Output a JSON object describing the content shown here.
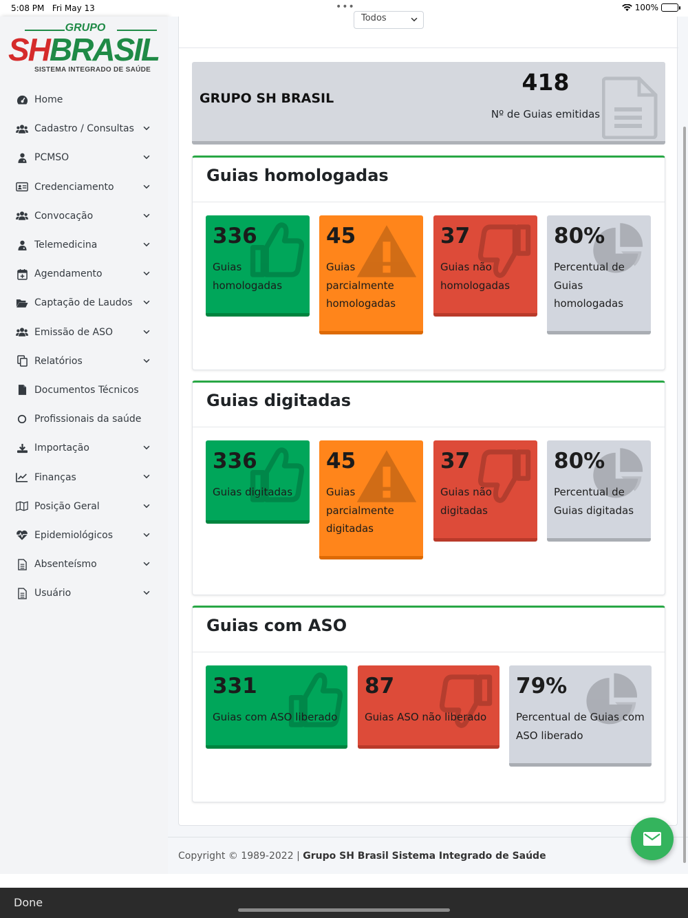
{
  "status_bar": {
    "time": "5:08 PM",
    "date": "Fri May 13",
    "battery": "100%"
  },
  "logo": {
    "top": "GRUPO",
    "brand_sh": "SH",
    "brand_name": "BRASIL",
    "subtitle": "SISTEMA INTEGRADO DE SAÚDE"
  },
  "sidebar": {
    "items": [
      {
        "label": "Home",
        "icon": "dashboard-icon",
        "expandable": false
      },
      {
        "label": "Cadastro / Consultas",
        "icon": "users-icon",
        "expandable": true
      },
      {
        "label": "PCMSO",
        "icon": "user-md-icon",
        "expandable": true
      },
      {
        "label": "Credenciamento",
        "icon": "id-card-icon",
        "expandable": true
      },
      {
        "label": "Convocação",
        "icon": "users-icon",
        "expandable": true
      },
      {
        "label": "Telemedicina",
        "icon": "user-md-icon",
        "expandable": true
      },
      {
        "label": "Agendamento",
        "icon": "calendar-plus-icon",
        "expandable": true
      },
      {
        "label": "Captação de Laudos",
        "icon": "folder-open-icon",
        "expandable": true
      },
      {
        "label": "Emissão de ASO",
        "icon": "users-icon",
        "expandable": true
      },
      {
        "label": "Relatórios",
        "icon": "copy-icon",
        "expandable": true
      },
      {
        "label": "Documentos Técnicos",
        "icon": "file-icon",
        "expandable": false
      },
      {
        "label": "Profissionais da saúde",
        "icon": "circle-icon",
        "expandable": false
      },
      {
        "label": "Importação",
        "icon": "download-icon",
        "expandable": true
      },
      {
        "label": "Finanças",
        "icon": "chart-line-icon",
        "expandable": true
      },
      {
        "label": "Posição Geral",
        "icon": "map-icon",
        "expandable": true
      },
      {
        "label": "Epidemiológicos",
        "icon": "heartbeat-icon",
        "expandable": true
      },
      {
        "label": "Absenteísmo",
        "icon": "file-alt-icon",
        "expandable": true
      },
      {
        "label": "Usuário",
        "icon": "file-alt-icon",
        "expandable": true
      }
    ]
  },
  "filter": {
    "selected": "Todos"
  },
  "summary": {
    "company": "GRUPO SH BRASIL",
    "count": "418",
    "caption": "Nº de Guias emitidas"
  },
  "sections": [
    {
      "title": "Guias homologadas",
      "boxes": [
        {
          "value": "336",
          "label": "Guias homologadas",
          "color": "green",
          "icon": "thumbs-up-icon"
        },
        {
          "value": "45",
          "label": "Guias parcialmente homologadas",
          "color": "orange",
          "icon": "warning-icon"
        },
        {
          "value": "37",
          "label": "Guias não homologadas",
          "color": "red",
          "icon": "thumbs-down-icon"
        },
        {
          "value": "80%",
          "label": "Percentual de Guias homologadas",
          "color": "grey",
          "icon": "pie-chart-icon"
        }
      ]
    },
    {
      "title": "Guias digitadas",
      "boxes": [
        {
          "value": "336",
          "label": "Guias digitadas",
          "color": "green",
          "icon": "thumbs-up-icon"
        },
        {
          "value": "45",
          "label": "Guias parcialmente digitadas",
          "color": "orange",
          "icon": "warning-icon"
        },
        {
          "value": "37",
          "label": "Guias não digitadas",
          "color": "red",
          "icon": "thumbs-down-icon"
        },
        {
          "value": "80%",
          "label": "Percentual de Guias digitadas",
          "color": "grey",
          "icon": "pie-chart-icon"
        }
      ]
    },
    {
      "title": "Guias com ASO",
      "boxes": [
        {
          "value": "331",
          "label": "Guias com ASO liberado",
          "color": "green",
          "icon": "thumbs-up-icon"
        },
        {
          "value": "87",
          "label": "Guias ASO não liberado",
          "color": "red",
          "icon": "thumbs-down-icon"
        },
        {
          "value": "79%",
          "label": "Percentual de Guias com ASO liberado",
          "color": "grey",
          "icon": "pie-chart-icon"
        }
      ]
    }
  ],
  "footer": {
    "prefix": "Copyright © 1989-2022 | ",
    "company": "Grupo SH Brasil Sistema Integrado de Saúde"
  },
  "bottom_bar": {
    "done": "Done"
  },
  "colors": {
    "green": "#00a65a",
    "orange": "#ff851b",
    "red": "#dd4b39",
    "grey": "#d2d6de",
    "accent": "#28a745"
  }
}
